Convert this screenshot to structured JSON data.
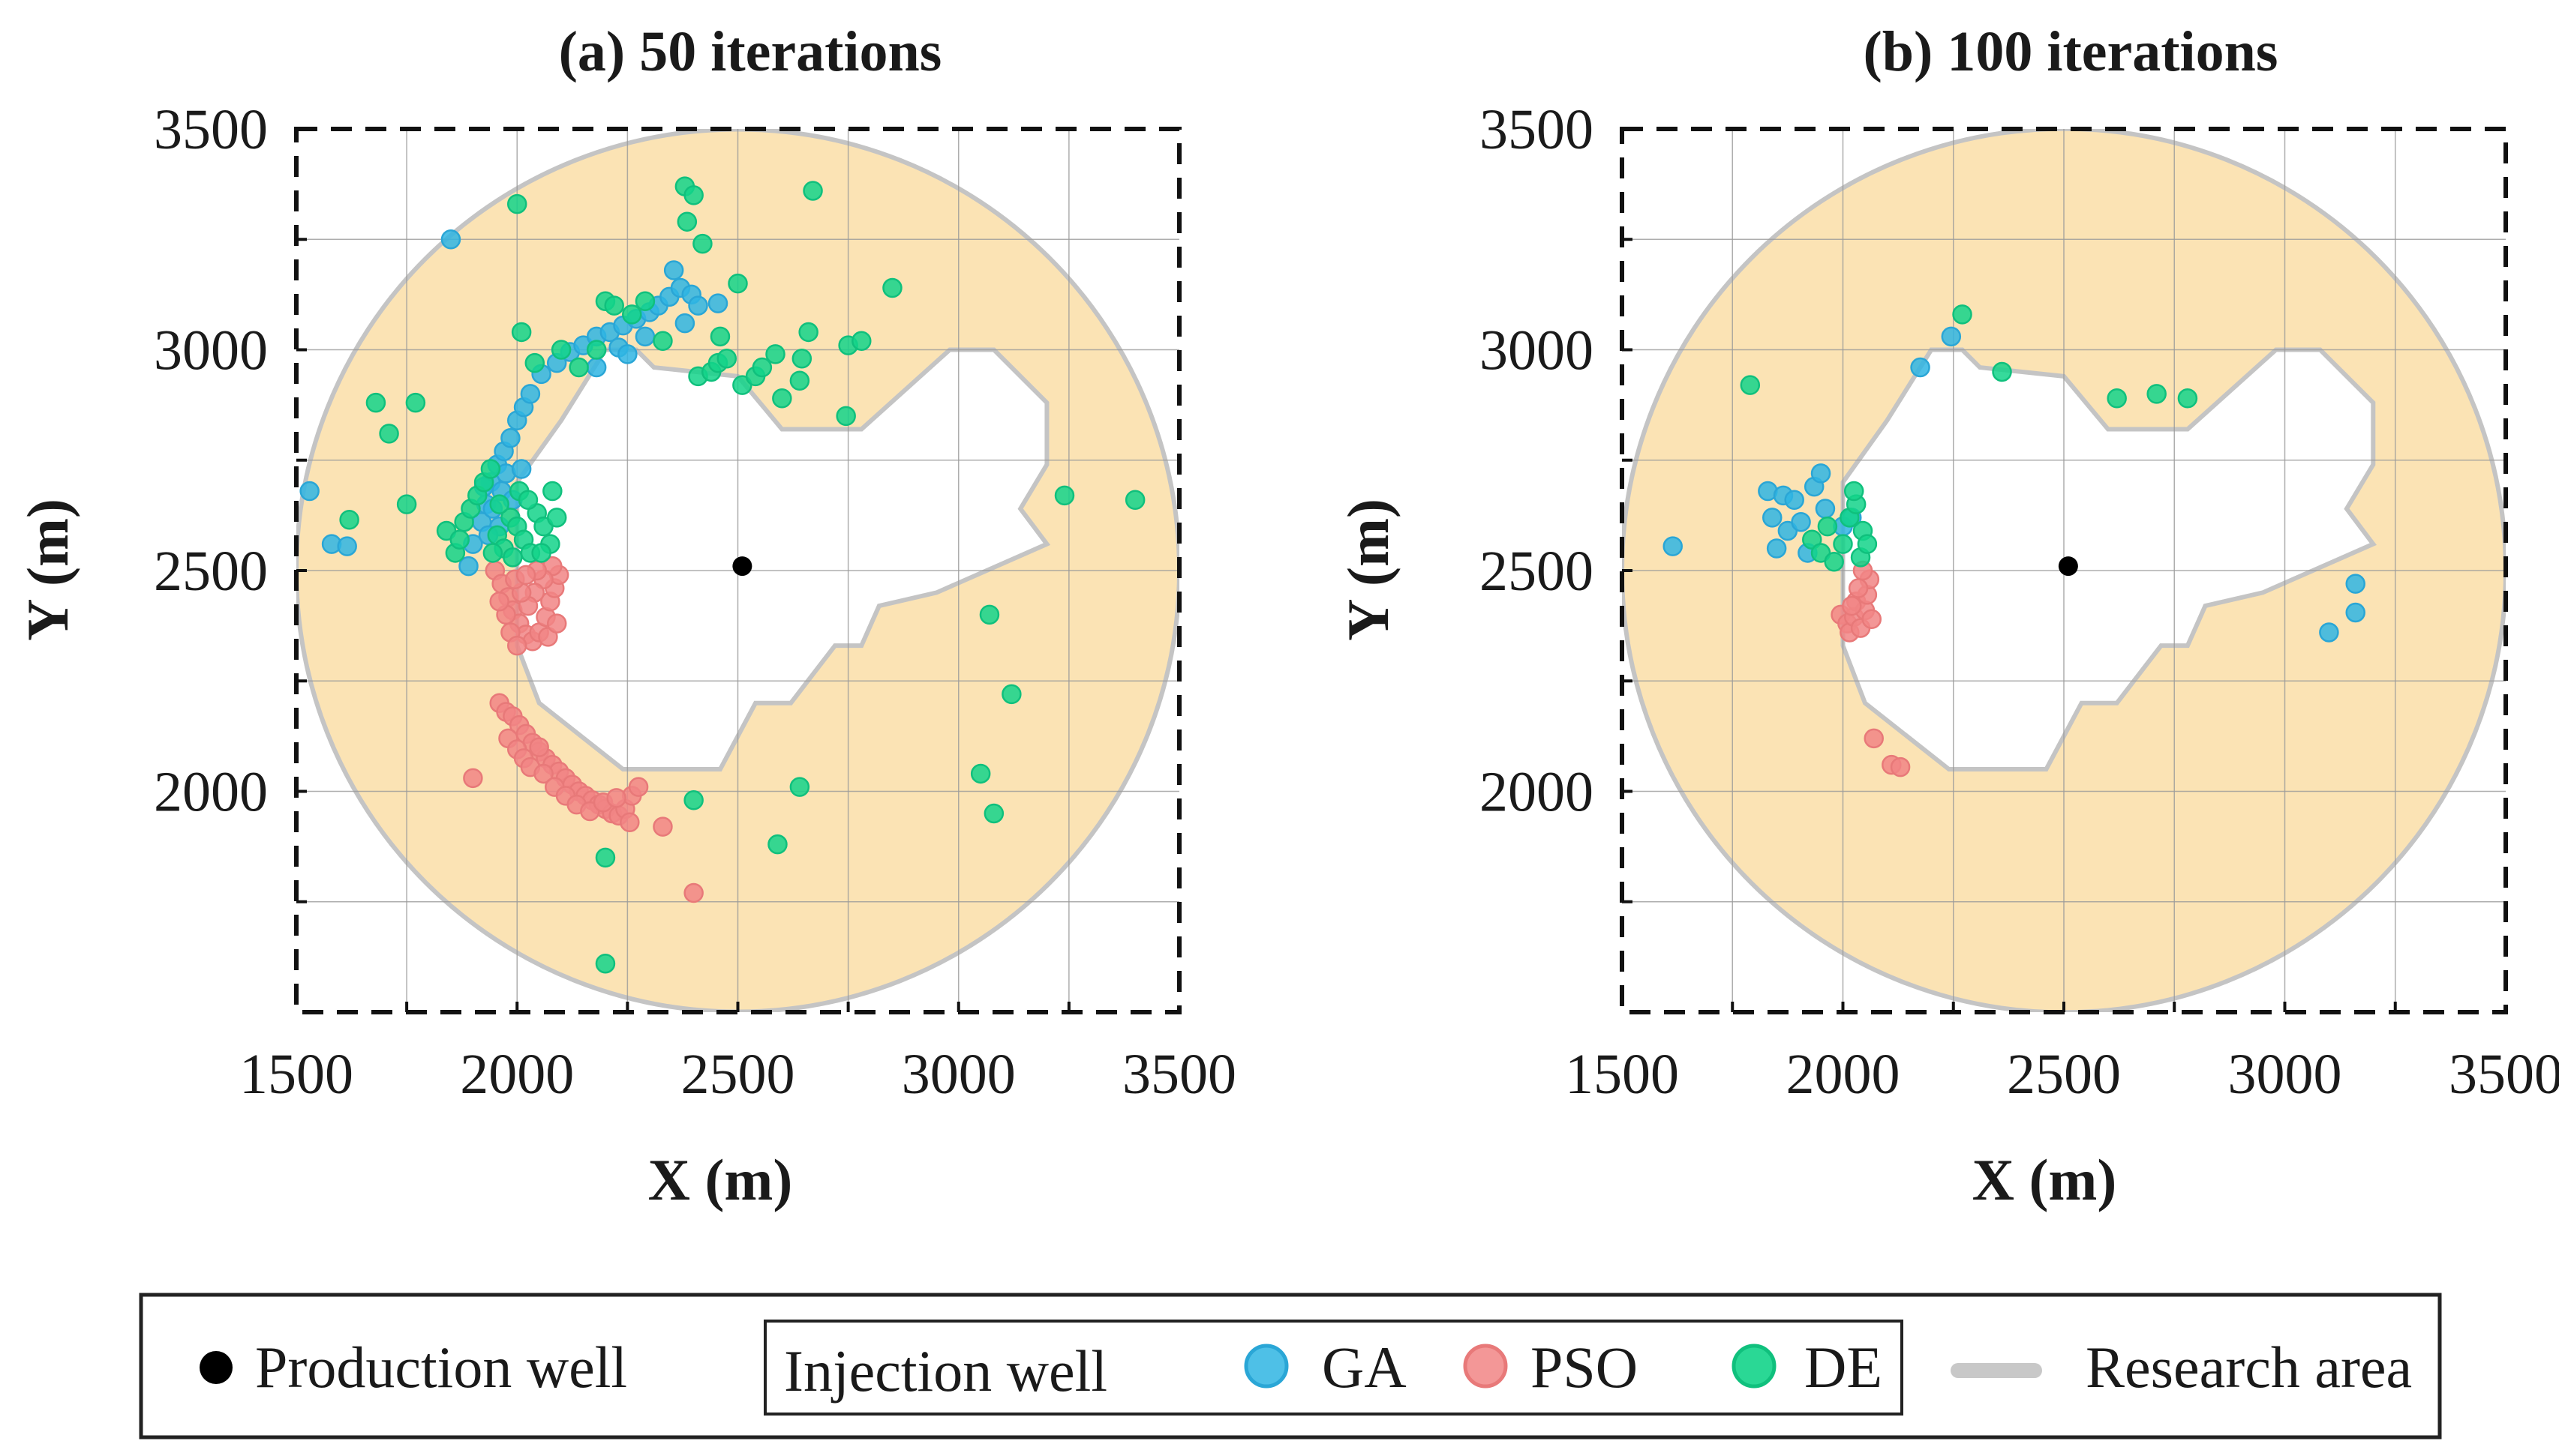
{
  "chart_data": [
    {
      "type": "scatter",
      "title": "(a)   50 iterations",
      "xlabel": "X (m)",
      "ylabel": "Y (m)",
      "xlim": [
        1500,
        3500
      ],
      "ylim": [
        1500,
        3500
      ],
      "xticks": [
        "1500",
        "2000",
        "2500",
        "3000",
        "3500"
      ],
      "yticks": [
        "2000",
        "2500",
        "3000",
        "3500"
      ],
      "grid": true,
      "production_well": [
        2510,
        2510
      ],
      "series": [
        {
          "name": "GA",
          "color": "#2fb5e3",
          "points": [
            [
              1530,
              2680
            ],
            [
              1580,
              2560
            ],
            [
              1615,
              2555
            ],
            [
              1850,
              3250
            ],
            [
              1890,
              2510
            ],
            [
              1900,
              2560
            ],
            [
              1920,
              2610
            ],
            [
              1930,
              2650
            ],
            [
              1940,
              2700
            ],
            [
              1955,
              2740
            ],
            [
              1970,
              2770
            ],
            [
              1985,
              2800
            ],
            [
              2000,
              2840
            ],
            [
              2015,
              2870
            ],
            [
              2030,
              2900
            ],
            [
              2055,
              2945
            ],
            [
              2090,
              2970
            ],
            [
              2120,
              2995
            ],
            [
              2150,
              3010
            ],
            [
              2180,
              3030
            ],
            [
              2210,
              3040
            ],
            [
              2240,
              3055
            ],
            [
              2270,
              3070
            ],
            [
              2300,
              3085
            ],
            [
              2320,
              3100
            ],
            [
              2345,
              3120
            ],
            [
              2370,
              3140
            ],
            [
              2395,
              3125
            ],
            [
              2410,
              3100
            ],
            [
              2355,
              3180
            ],
            [
              2455,
              3105
            ],
            [
              1925,
              2690
            ],
            [
              1945,
              2640
            ],
            [
              1960,
              2600
            ],
            [
              1975,
              2720
            ],
            [
              1935,
              2580
            ],
            [
              1965,
              2680
            ],
            [
              1990,
              2660
            ],
            [
              2010,
              2730
            ],
            [
              2180,
              2960
            ],
            [
              2230,
              3005
            ],
            [
              2380,
              3060
            ],
            [
              2290,
              3030
            ],
            [
              2250,
              2990
            ]
          ]
        },
        {
          "name": "PSO",
          "color": "#f18585",
          "points": [
            [
              1900,
              2030
            ],
            [
              1960,
              2200
            ],
            [
              1975,
              2180
            ],
            [
              1990,
              2170
            ],
            [
              2005,
              2150
            ],
            [
              2020,
              2130
            ],
            [
              2035,
              2110
            ],
            [
              2050,
              2090
            ],
            [
              2065,
              2075
            ],
            [
              2080,
              2060
            ],
            [
              2095,
              2045
            ],
            [
              2110,
              2030
            ],
            [
              2125,
              2015
            ],
            [
              2140,
              2000
            ],
            [
              2155,
              1990
            ],
            [
              2170,
              1980
            ],
            [
              2185,
              1970
            ],
            [
              2200,
              1960
            ],
            [
              2215,
              1950
            ],
            [
              2230,
              1945
            ],
            [
              2245,
              1960
            ],
            [
              2260,
              1990
            ],
            [
              2275,
              2010
            ],
            [
              2255,
              1930
            ],
            [
              2330,
              1920
            ],
            [
              2400,
              1770
            ],
            [
              1980,
              2120
            ],
            [
              2000,
              2095
            ],
            [
              2015,
              2075
            ],
            [
              2030,
              2055
            ],
            [
              2060,
              2040
            ],
            [
              2085,
              2010
            ],
            [
              2110,
              1990
            ],
            [
              2135,
              1970
            ],
            [
              2165,
              1955
            ],
            [
              2195,
              1975
            ],
            [
              2225,
              1985
            ],
            [
              2050,
              2100
            ],
            [
              1950,
              2500
            ],
            [
              1965,
              2470
            ],
            [
              1980,
              2440
            ],
            [
              1990,
              2410
            ],
            [
              2005,
              2380
            ],
            [
              2020,
              2355
            ],
            [
              2035,
              2340
            ],
            [
              2050,
              2360
            ],
            [
              2065,
              2395
            ],
            [
              2075,
              2430
            ],
            [
              2085,
              2460
            ],
            [
              2095,
              2490
            ],
            [
              2080,
              2510
            ],
            [
              2060,
              2480
            ],
            [
              2040,
              2450
            ],
            [
              2025,
              2420
            ],
            [
              2010,
              2450
            ],
            [
              1995,
              2480
            ],
            [
              1975,
              2400
            ],
            [
              1985,
              2360
            ],
            [
              2000,
              2330
            ],
            [
              1960,
              2430
            ],
            [
              2070,
              2350
            ],
            [
              2090,
              2380
            ],
            [
              2045,
              2500
            ],
            [
              2020,
              2490
            ]
          ]
        },
        {
          "name": "DE",
          "color": "#13d48a",
          "points": [
            [
              1620,
              2615
            ],
            [
              1680,
              2880
            ],
            [
              1710,
              2810
            ],
            [
              1750,
              2650
            ],
            [
              1770,
              2880
            ],
            [
              1840,
              2590
            ],
            [
              1860,
              2540
            ],
            [
              1870,
              2570
            ],
            [
              1880,
              2610
            ],
            [
              1895,
              2640
            ],
            [
              1910,
              2670
            ],
            [
              1925,
              2700
            ],
            [
              1940,
              2730
            ],
            [
              1955,
              2580
            ],
            [
              1970,
              2550
            ],
            [
              1985,
              2620
            ],
            [
              2000,
              2600
            ],
            [
              2015,
              2570
            ],
            [
              2030,
              2540
            ],
            [
              2045,
              2630
            ],
            [
              2060,
              2600
            ],
            [
              2075,
              2560
            ],
            [
              2090,
              2620
            ],
            [
              1990,
              2530
            ],
            [
              2005,
              2680
            ],
            [
              2025,
              2660
            ],
            [
              2055,
              2540
            ],
            [
              2080,
              2680
            ],
            [
              1960,
              2650
            ],
            [
              1945,
              2540
            ],
            [
              2000,
              3330
            ],
            [
              2010,
              3040
            ],
            [
              2040,
              2970
            ],
            [
              2100,
              3000
            ],
            [
              2140,
              2960
            ],
            [
              2180,
              3000
            ],
            [
              2200,
              3110
            ],
            [
              2220,
              3100
            ],
            [
              2260,
              3080
            ],
            [
              2290,
              3110
            ],
            [
              2330,
              3020
            ],
            [
              2380,
              3370
            ],
            [
              2385,
              3290
            ],
            [
              2400,
              3350
            ],
            [
              2410,
              2940
            ],
            [
              2420,
              3240
            ],
            [
              2440,
              2950
            ],
            [
              2455,
              2970
            ],
            [
              2460,
              3030
            ],
            [
              2475,
              2980
            ],
            [
              2500,
              3150
            ],
            [
              2510,
              2920
            ],
            [
              2540,
              2940
            ],
            [
              2555,
              2960
            ],
            [
              2585,
              2990
            ],
            [
              2600,
              2890
            ],
            [
              2640,
              2930
            ],
            [
              2645,
              2980
            ],
            [
              2660,
              3040
            ],
            [
              2670,
              3360
            ],
            [
              2745,
              2850
            ],
            [
              2750,
              3010
            ],
            [
              2780,
              3020
            ],
            [
              2850,
              3140
            ],
            [
              3070,
              2400
            ],
            [
              3120,
              2220
            ],
            [
              3050,
              2040
            ],
            [
              3080,
              1950
            ],
            [
              3240,
              2670
            ],
            [
              3400,
              2660
            ],
            [
              2400,
              1980
            ],
            [
              2590,
              1880
            ],
            [
              2640,
              2010
            ],
            [
              2200,
              1850
            ],
            [
              2200,
              1610
            ]
          ]
        }
      ]
    },
    {
      "type": "scatter",
      "title": "(b) 100 iterations",
      "xlabel": "X (m)",
      "ylabel": "Y (m)",
      "xlim": [
        1500,
        3500
      ],
      "ylim": [
        1500,
        3500
      ],
      "xticks": [
        "1500",
        "2000",
        "2500",
        "3000",
        "3500"
      ],
      "yticks": [
        "2000",
        "2500",
        "3000",
        "3500"
      ],
      "grid": true,
      "production_well": [
        2510,
        2510
      ],
      "series": [
        {
          "name": "GA",
          "color": "#2fb5e3",
          "points": [
            [
              1615,
              2555
            ],
            [
              1830,
              2680
            ],
            [
              1840,
              2620
            ],
            [
              1850,
              2550
            ],
            [
              1865,
              2670
            ],
            [
              1875,
              2590
            ],
            [
              1890,
              2660
            ],
            [
              1905,
              2610
            ],
            [
              1920,
              2540
            ],
            [
              1935,
              2690
            ],
            [
              1950,
              2720
            ],
            [
              1960,
              2640
            ],
            [
              2000,
              2600
            ],
            [
              2020,
              2620
            ],
            [
              2175,
              2960
            ],
            [
              2245,
              3030
            ],
            [
              3100,
              2360
            ],
            [
              3160,
              2470
            ],
            [
              3160,
              2405
            ]
          ]
        },
        {
          "name": "PSO",
          "color": "#f18585",
          "points": [
            [
              1995,
              2400
            ],
            [
              2010,
              2380
            ],
            [
              2015,
              2360
            ],
            [
              2025,
              2395
            ],
            [
              2030,
              2430
            ],
            [
              2040,
              2370
            ],
            [
              2050,
              2410
            ],
            [
              2055,
              2445
            ],
            [
              2060,
              2480
            ],
            [
              2045,
              2500
            ],
            [
              2035,
              2460
            ],
            [
              2065,
              2390
            ],
            [
              2020,
              2420
            ],
            [
              2070,
              2120
            ],
            [
              2110,
              2060
            ],
            [
              2130,
              2055
            ]
          ]
        },
        {
          "name": "DE",
          "color": "#13d48a",
          "points": [
            [
              1790,
              2920
            ],
            [
              1930,
              2570
            ],
            [
              1950,
              2540
            ],
            [
              1965,
              2600
            ],
            [
              1980,
              2520
            ],
            [
              2000,
              2560
            ],
            [
              2015,
              2620
            ],
            [
              2030,
              2650
            ],
            [
              2040,
              2530
            ],
            [
              2045,
              2590
            ],
            [
              2055,
              2560
            ],
            [
              2025,
              2680
            ],
            [
              2270,
              3080
            ],
            [
              2360,
              2950
            ],
            [
              2620,
              2890
            ],
            [
              2710,
              2900
            ],
            [
              2780,
              2890
            ]
          ]
        }
      ]
    }
  ],
  "legend": {
    "production_well": "Production well",
    "injection_well": "Injection well",
    "ga": "GA",
    "pso": "PSO",
    "de": "DE",
    "research_area": "Research area"
  },
  "colors": {
    "ring_fill": "#fbe3b4",
    "boundary": "#c4c4c4",
    "ga": "#2fb5e3",
    "pso": "#f18585",
    "de": "#13d48a",
    "production_well": "#000000"
  }
}
